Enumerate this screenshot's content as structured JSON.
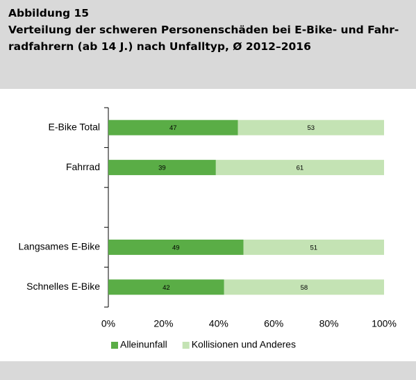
{
  "chart_data": {
    "type": "stacked_barh",
    "figure_label": "Abbildung 15",
    "title": [
      "Verteilung der schweren Personenschäden bei E-Bike- und Fahr-",
      "radfahrern (ab 14 J.) nach Unfalltyp, Ø 2012–2016"
    ],
    "categories": [
      "E-Bike Total",
      "Fahrrad",
      null,
      "Langsames E-Bike",
      "Schnelles E-Bike"
    ],
    "series": [
      {
        "name": "Alleinunfall",
        "color": "#5aad46",
        "values": [
          47,
          39,
          null,
          49,
          42
        ]
      },
      {
        "name": "Kollisionen und Anderes",
        "color": "#c4e3b4",
        "values": [
          53,
          61,
          null,
          51,
          58
        ]
      }
    ],
    "xlim": [
      0,
      100
    ],
    "xticks": [
      {
        "value": 0,
        "label": "0%"
      },
      {
        "value": 20,
        "label": "20%"
      },
      {
        "value": 40,
        "label": "40%"
      },
      {
        "value": 60,
        "label": "60%"
      },
      {
        "value": 80,
        "label": "80%"
      },
      {
        "value": 100,
        "label": "100%"
      }
    ],
    "legend": "bottom"
  }
}
